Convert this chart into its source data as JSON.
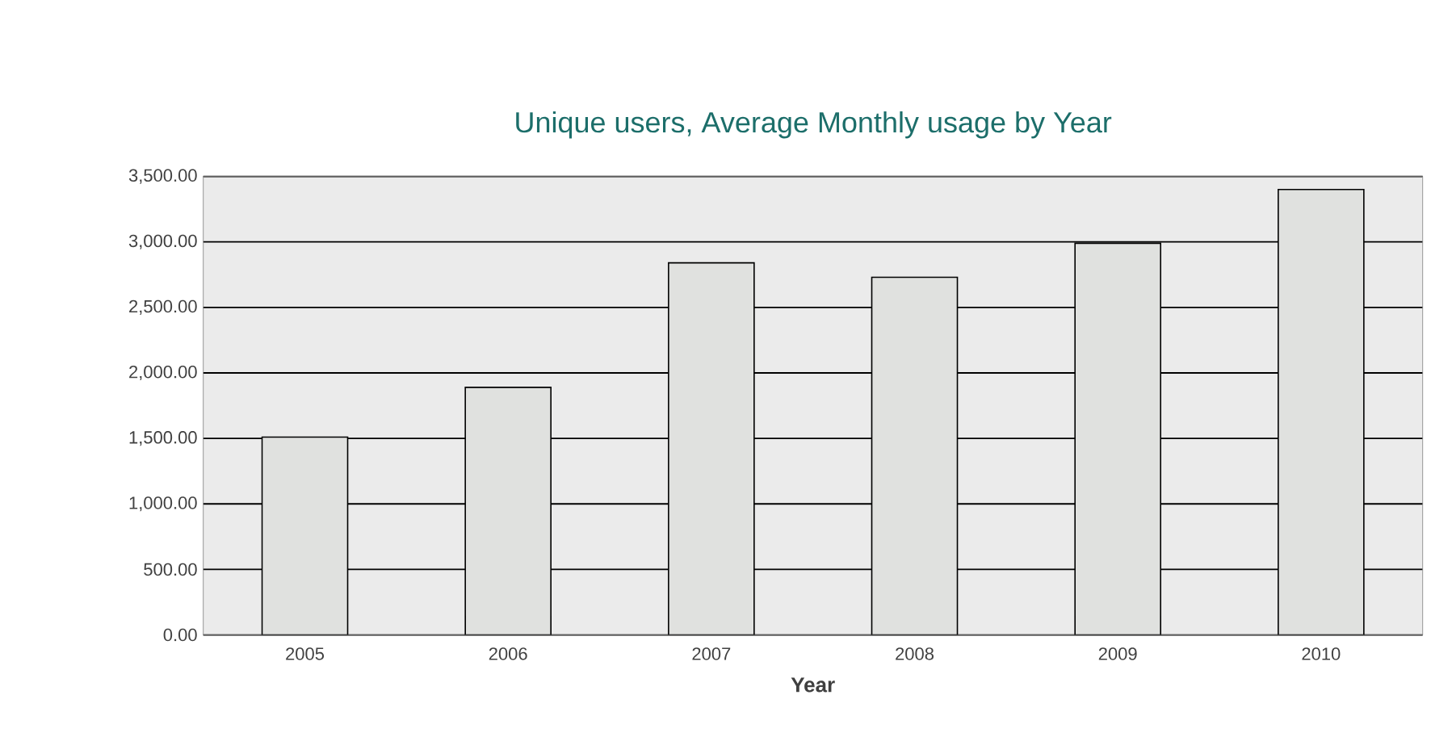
{
  "chart_data": {
    "type": "bar",
    "title": "Unique users, Average Monthly usage by Year",
    "xlabel": "Year",
    "categories": [
      "2005",
      "2006",
      "2007",
      "2008",
      "2009",
      "2010"
    ],
    "values": [
      1510,
      1890,
      2840,
      2730,
      2990,
      3400
    ],
    "color": "#e0e1df",
    "ylim": [
      0,
      3500
    ],
    "yticks": [
      {
        "value": 0,
        "label": "0.00"
      },
      {
        "value": 500,
        "label": "500.00"
      },
      {
        "value": 1000,
        "label": "1,000.00"
      },
      {
        "value": 1500,
        "label": "1,500.00"
      },
      {
        "value": 2000,
        "label": "2,000.00"
      },
      {
        "value": 2500,
        "label": "2,500.00"
      },
      {
        "value": 3000,
        "label": "3,000.00"
      },
      {
        "value": 3500,
        "label": "3,500.00"
      }
    ],
    "grid": "y"
  }
}
